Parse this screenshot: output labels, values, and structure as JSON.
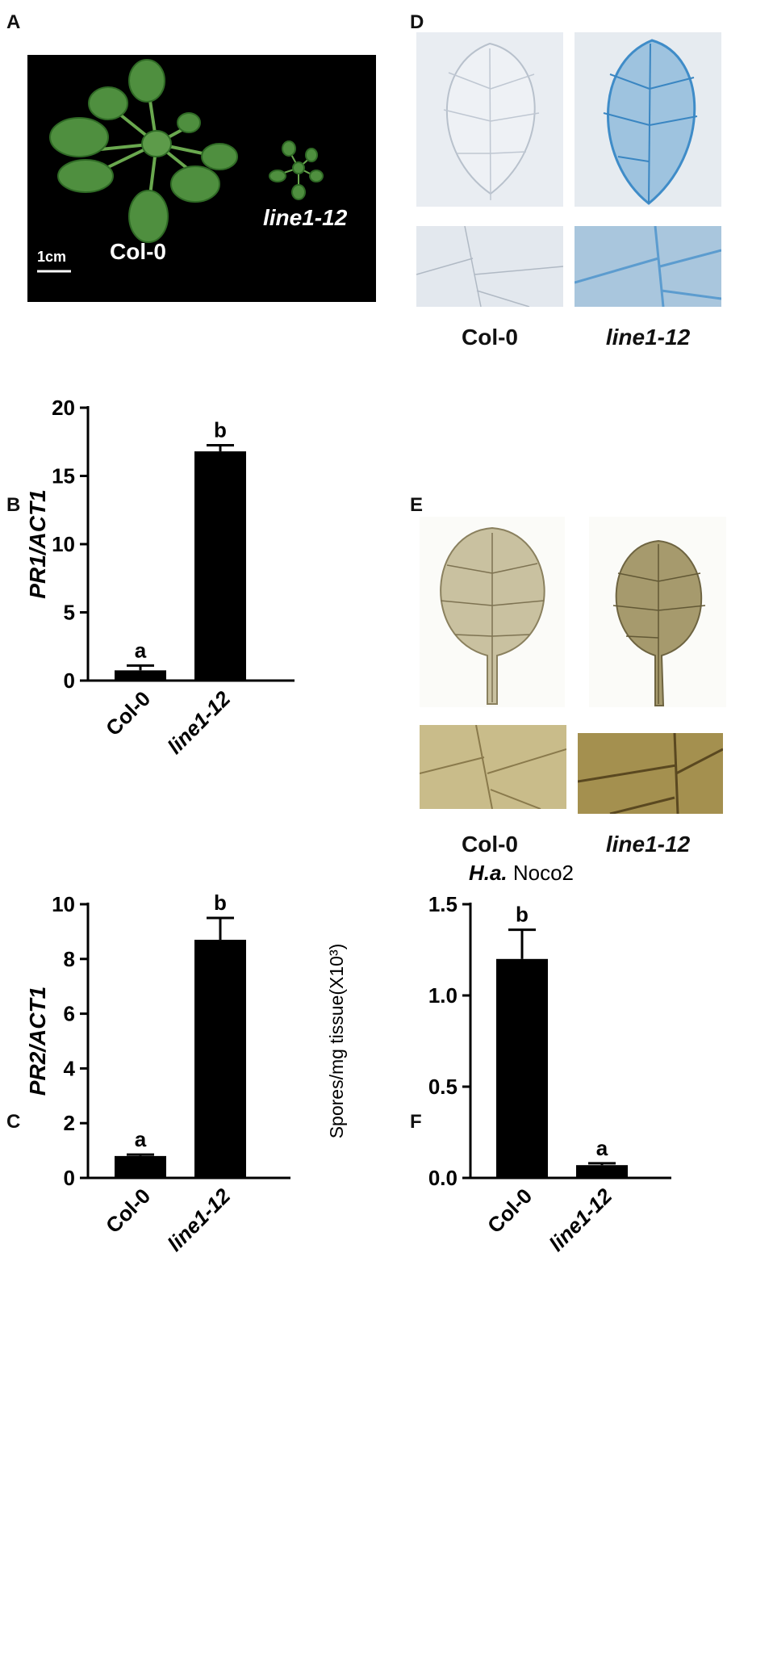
{
  "panels": {
    "A": {
      "letter": "A",
      "labels": {
        "left": "Col-0",
        "right": "line1-12",
        "scale": "1cm"
      }
    },
    "D": {
      "letter": "D",
      "labels": {
        "left": "Col-0",
        "right": "line1-12"
      }
    },
    "E": {
      "letter": "E",
      "labels": {
        "left": "Col-0",
        "right": "line1-12"
      }
    },
    "B": {
      "letter": "B"
    },
    "C": {
      "letter": "C"
    },
    "F": {
      "letter": "F"
    }
  },
  "chart_data": [
    {
      "id": "B",
      "type": "bar",
      "categories": [
        "Col-0",
        "line1-12"
      ],
      "values": [
        0.75,
        16.8
      ],
      "errors": [
        0.35,
        0.45
      ],
      "significance": [
        "a",
        "b"
      ],
      "ylabel": "PR1/ACT1",
      "ylim": [
        0,
        20
      ],
      "yticks": [
        0,
        5,
        10,
        15,
        20
      ]
    },
    {
      "id": "C",
      "type": "bar",
      "categories": [
        "Col-0",
        "line1-12"
      ],
      "values": [
        0.8,
        8.7
      ],
      "errors": [
        0.05,
        0.8
      ],
      "significance": [
        "a",
        "b"
      ],
      "ylabel": "PR2/ACT1",
      "ylim": [
        0,
        10
      ],
      "yticks": [
        0,
        2,
        4,
        6,
        8,
        10
      ]
    },
    {
      "id": "F",
      "type": "bar",
      "categories": [
        "Col-0",
        "line1-12"
      ],
      "values": [
        1.2,
        0.07
      ],
      "errors": [
        0.16,
        0.01
      ],
      "significance": [
        "b",
        "a"
      ],
      "title_italic": "H.a.",
      "title_rest": "Noco2",
      "ylabel": "Spores/mg tissue(X10³)",
      "ylim": [
        0,
        1.5
      ],
      "yticks": [
        0.0,
        0.5,
        1.0,
        1.5
      ],
      "ytick_labels": [
        "0.0",
        "0.5",
        "1.0",
        "1.5"
      ]
    }
  ]
}
